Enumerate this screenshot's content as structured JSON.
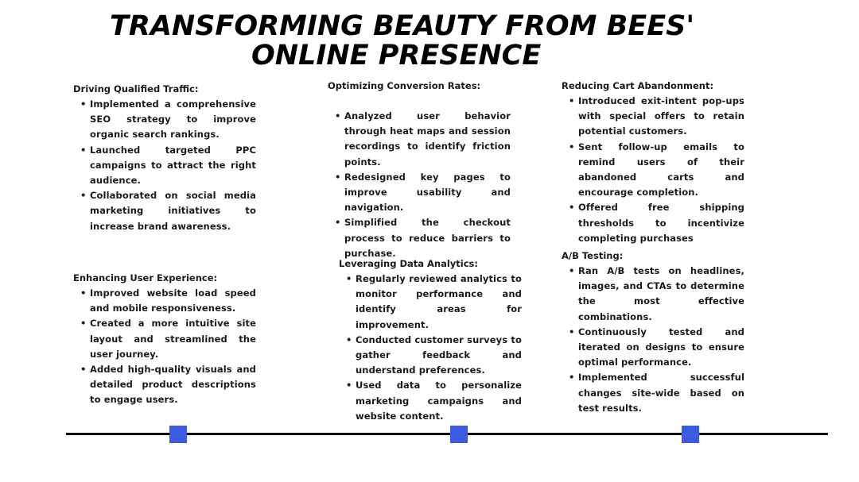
{
  "title": {
    "line1": "TRANSFORMING BEAUTY FROM BEES'",
    "line2": "ONLINE PRESENCE"
  },
  "sections": [
    {
      "heading": "Driving Qualified Traffic:",
      "bullets": [
        "Implemented a comprehensive SEO strategy to improve organic search rankings.",
        "Launched targeted PPC campaigns to attract the right audience.",
        "Collaborated on social media marketing initiatives to increase brand awareness."
      ]
    },
    {
      "heading": "Optimizing Conversion Rates:",
      "bullets": [
        "Analyzed user behavior through heat maps and session recordings to identify friction points.",
        "Redesigned key pages to improve usability and navigation.",
        "Simplified the checkout process to reduce barriers to purchase."
      ]
    },
    {
      "heading": "Reducing Cart Abandonment:",
      "bullets": [
        "Introduced exit-intent pop-ups with special offers to retain potential customers.",
        "Sent follow-up emails to remind users of their abandoned carts and encourage completion.",
        "Offered free shipping thresholds to incentivize completing purchases"
      ]
    },
    {
      "heading": "Enhancing User Experience:",
      "bullets": [
        "Improved website load speed and mobile responsiveness.",
        "Created a more intuitive site layout and streamlined the user journey.",
        "Added high-quality visuals and detailed product descriptions to engage users."
      ]
    },
    {
      "heading": "Leveraging Data Analytics:",
      "bullets": [
        "Regularly reviewed analytics to monitor performance and identify areas for improvement.",
        "Conducted customer surveys to gather feedback and understand preferences.",
        "Used data to personalize marketing campaigns and website content."
      ]
    },
    {
      "heading": "A/B Testing:",
      "bullets": [
        "Ran A/B tests on headlines, images, and CTAs to determine the most effective combinations.",
        "Continuously tested and iterated on designs to ensure optimal performance.",
        "Implemented successful changes site-wide based on test results."
      ]
    }
  ],
  "timeline": {
    "line_color": "#000000",
    "marker_color": "#3d5be0",
    "marker_count": 3
  }
}
